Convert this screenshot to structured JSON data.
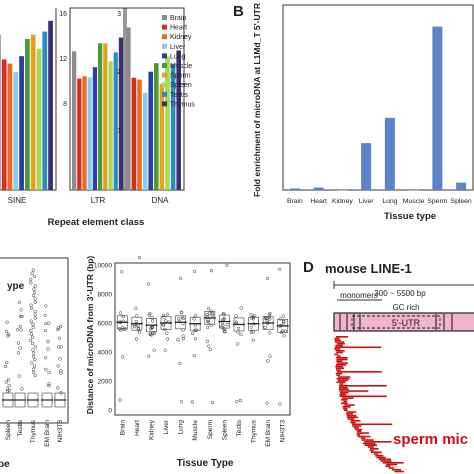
{
  "colors": {
    "Brain": "#8c8c8c",
    "Heart": "#d62d20",
    "Kidney": "#f06a1a",
    "Liver": "#88ccee",
    "Lung": "#2c3fa8",
    "Muscle": "#4a9a3a",
    "Sperm": "#e6a020",
    "Spleen": "#a6d854",
    "Testis": "#2b8cc4",
    "Thymus": "#3c2e70",
    "bar_b": "#5b84c8",
    "red": "#cc1111",
    "pink": "#f0a8c8"
  },
  "panel_a": {
    "legend": [
      "Brain",
      "Heart",
      "Kidney",
      "Liver",
      "Lung",
      "Muscle",
      "Sperm",
      "Spleen",
      "Testis",
      "Thymus"
    ],
    "xlabel": "Repeat element class",
    "chart_data": [
      {
        "type": "bar",
        "title": "",
        "xlabel": "SINE",
        "ylim": [
          0,
          17
        ],
        "categories": [
          "Brain",
          "Heart",
          "Kidney",
          "Liver",
          "Lung",
          "Muscle",
          "Sperm",
          "Spleen",
          "Testis",
          "Thymus"
        ],
        "values": [
          14.5,
          12.2,
          11.8,
          11.0,
          12.5,
          14.1,
          14.5,
          13.2,
          14.8,
          15.8
        ],
        "ticks": []
      },
      {
        "type": "bar",
        "title": "",
        "xlabel": "LTR",
        "ylim": [
          0,
          16
        ],
        "categories": [
          "Brain",
          "Heart",
          "Kidney",
          "Liver",
          "Lung",
          "Muscle",
          "Sperm",
          "Spleen",
          "Testis",
          "Thymus"
        ],
        "values": [
          12.2,
          9.8,
          10.0,
          9.9,
          10.8,
          12.9,
          12.9,
          11.3,
          12.1,
          13.4
        ],
        "ticks": [
          "16",
          "12",
          "8"
        ]
      },
      {
        "type": "bar",
        "title": "",
        "xlabel": "DNA",
        "ylim": [
          0,
          3
        ],
        "categories": [
          "Brain",
          "Heart",
          "Kidney",
          "Liver",
          "Lung",
          "Muscle",
          "Sperm",
          "Spleen",
          "Testis",
          "Thymus"
        ],
        "values": [
          2.68,
          1.85,
          1.82,
          1.6,
          1.95,
          2.09,
          1.75,
          2.2,
          2.08,
          2.3
        ],
        "ticks": [
          "3",
          "2",
          "1"
        ]
      }
    ]
  },
  "panel_b": {
    "letter": "B",
    "ylabel": "Fold enrichment of microDNA at L1Md_T 5'-UTR",
    "xlabel": "Tissue type",
    "chart_data": {
      "type": "bar",
      "categories": [
        "Brain",
        "Heart",
        "Kidney",
        "Liver",
        "Lung",
        "Muscle",
        "Sperm",
        "Spleen"
      ],
      "values": [
        0.25,
        0.4,
        0.0,
        7.6,
        11.7,
        0.0,
        26.5,
        1.2
      ],
      "ylim": [
        0,
        30
      ],
      "ticks": []
    }
  },
  "panel_c": {
    "left_xlabel": "ype",
    "left_bottom_label": "pe",
    "left_ticks": [
      "Spleen",
      "Testis",
      "Thymus",
      "EM Brain",
      "NIH3T3"
    ],
    "ylabel": "Distance of microDNA from 3'-UTR (bp)",
    "xlabel": "Tissue Type",
    "chart_data": {
      "type": "scatter",
      "categories": [
        "Brain",
        "Heart",
        "Kidney",
        "Liver",
        "Lung",
        "Muscle",
        "Sperm",
        "Spleen",
        "Testis",
        "Thymus",
        "EM Brain",
        "NIH3T3"
      ],
      "medians": [
        6050,
        5950,
        5850,
        6000,
        6050,
        5950,
        6350,
        6100,
        5900,
        5950,
        6000,
        5800
      ],
      "ylim": [
        0,
        10000
      ],
      "ticks": [
        "10000",
        "8000",
        "6000",
        "4000",
        "2000",
        "0"
      ]
    }
  },
  "panel_d": {
    "letter": "D",
    "title": "mouse LINE-1",
    "range_label": "300 ~ 5500 bp",
    "monomers_label": "monomers",
    "gc_label": "GC rich",
    "utr_label": "5'-UTR",
    "caption": "sperm mic"
  }
}
